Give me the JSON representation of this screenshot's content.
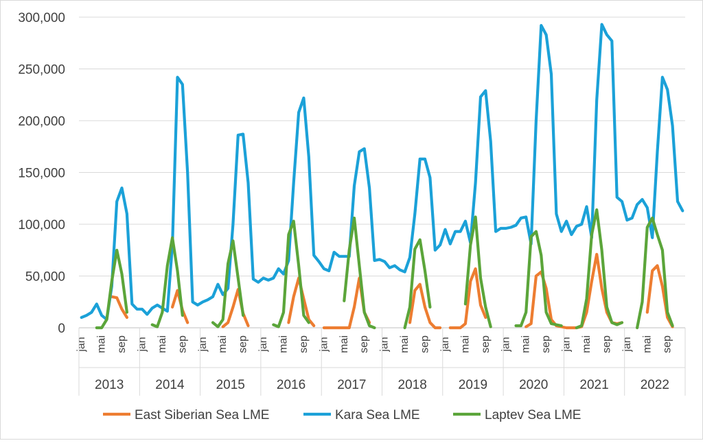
{
  "chart_data": {
    "type": "line",
    "title": "",
    "xlabel": "",
    "ylabel": "",
    "ylim": [
      0,
      300000
    ],
    "grid": true,
    "legend_position": "bottom",
    "y_ticks": [
      "0",
      "50,000",
      "100,000",
      "150,000",
      "200,000",
      "250,000",
      "300,000"
    ],
    "month_labels": [
      "jan",
      "mai",
      "sep"
    ],
    "years": [
      "2013",
      "2014",
      "2015",
      "2016",
      "2017",
      "2018",
      "2019",
      "2020",
      "2021",
      "2022"
    ],
    "series": [
      {
        "name": "East Siberian Sea LME",
        "color": "#ED7D31",
        "values": [
          null,
          null,
          null,
          null,
          null,
          null,
          30000,
          29000,
          18000,
          10000,
          null,
          null,
          null,
          null,
          null,
          null,
          null,
          null,
          20000,
          36000,
          17000,
          5000,
          null,
          null,
          null,
          null,
          null,
          null,
          1000,
          5000,
          20000,
          37000,
          14000,
          2000,
          null,
          null,
          null,
          null,
          null,
          null,
          null,
          5000,
          30000,
          48000,
          28000,
          8000,
          2000,
          null,
          0,
          0,
          0,
          0,
          0,
          0,
          20000,
          48000,
          15000,
          5000,
          null,
          null,
          null,
          null,
          null,
          null,
          null,
          5000,
          36000,
          42000,
          20000,
          5000,
          0,
          0,
          null,
          0,
          0,
          0,
          4000,
          45000,
          57000,
          22000,
          10000,
          null,
          null,
          null,
          null,
          null,
          null,
          null,
          1000,
          4000,
          50000,
          54000,
          38000,
          8000,
          2000,
          1000,
          0,
          0,
          0,
          1000,
          15000,
          45000,
          71000,
          38000,
          15000,
          5000,
          4000,
          5000,
          null,
          null,
          null,
          null,
          15000,
          55000,
          60000,
          40000,
          10000,
          1000,
          null,
          null
        ]
      },
      {
        "name": "Kara Sea LME",
        "color": "#1BA1D8",
        "values": [
          10000,
          12000,
          15000,
          23000,
          12000,
          8000,
          40000,
          122000,
          135000,
          110000,
          23000,
          18000,
          18000,
          13000,
          19000,
          22000,
          19000,
          16000,
          80000,
          242000,
          235000,
          150000,
          25000,
          22000,
          25000,
          27000,
          30000,
          42000,
          32000,
          38000,
          100000,
          186000,
          187000,
          140000,
          47000,
          44000,
          48000,
          46000,
          48000,
          57000,
          52000,
          65000,
          140000,
          208000,
          222000,
          165000,
          70000,
          64000,
          57000,
          55000,
          73000,
          69000,
          69000,
          69000,
          137000,
          170000,
          173000,
          135000,
          65000,
          66000,
          64000,
          58000,
          60000,
          56000,
          54000,
          68000,
          110000,
          163000,
          163000,
          145000,
          75000,
          80000,
          95000,
          81000,
          93000,
          93000,
          103000,
          82000,
          140000,
          223000,
          229000,
          180000,
          93000,
          96000,
          96000,
          97000,
          99000,
          106000,
          107000,
          81000,
          200000,
          292000,
          283000,
          245000,
          110000,
          93000,
          103000,
          90000,
          98000,
          100000,
          117000,
          87000,
          220000,
          293000,
          283000,
          277000,
          126000,
          122000,
          104000,
          106000,
          119000,
          124000,
          116000,
          87000,
          170000,
          242000,
          230000,
          195000,
          122000,
          113000
        ]
      },
      {
        "name": "Laptev Sea LME",
        "color": "#5BA53A",
        "values": [
          null,
          null,
          null,
          0,
          0,
          8000,
          45000,
          75000,
          52000,
          15000,
          null,
          null,
          null,
          null,
          3000,
          1000,
          15000,
          60000,
          87000,
          55000,
          12000,
          null,
          null,
          null,
          null,
          null,
          5000,
          1000,
          8000,
          62000,
          84000,
          48000,
          12000,
          null,
          null,
          null,
          null,
          null,
          3000,
          1000,
          15000,
          90000,
          103000,
          60000,
          12000,
          5000,
          null,
          null,
          null,
          null,
          null,
          null,
          26000,
          75000,
          106000,
          60000,
          15000,
          2000,
          0,
          null,
          null,
          null,
          null,
          null,
          0,
          20000,
          76000,
          85000,
          55000,
          20000,
          null,
          null,
          null,
          null,
          null,
          null,
          23000,
          80000,
          107000,
          48000,
          20000,
          1000,
          null,
          null,
          null,
          null,
          2000,
          2000,
          15000,
          88000,
          93000,
          70000,
          15000,
          4000,
          3000,
          2000,
          null,
          null,
          0,
          2000,
          28000,
          90000,
          114000,
          75000,
          20000,
          5000,
          3000,
          5000,
          null,
          null,
          0,
          25000,
          97000,
          106000,
          90000,
          75000,
          15000,
          2000,
          null,
          null
        ]
      }
    ]
  }
}
